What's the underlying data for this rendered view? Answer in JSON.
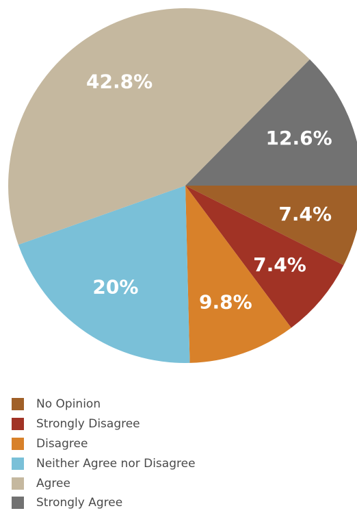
{
  "chart_data": {
    "type": "pie",
    "title": "",
    "slices": [
      {
        "name": "No Opinion",
        "value": 7.4,
        "label": "7.4%",
        "color": "#a06028"
      },
      {
        "name": "Strongly Disagree",
        "value": 7.4,
        "label": "7.4%",
        "color": "#a13325"
      },
      {
        "name": "Disagree",
        "value": 9.8,
        "label": "9.8%",
        "color": "#d8812a"
      },
      {
        "name": "Neither Agree nor Disagree",
        "value": 20,
        "label": "20%",
        "color": "#7ac0d8"
      },
      {
        "name": "Agree",
        "value": 42.8,
        "label": "42.8%",
        "color": "#c5b89f"
      },
      {
        "name": "Strongly Agree",
        "value": 12.6,
        "label": "12.6%",
        "color": "#727272"
      }
    ],
    "start": "east",
    "direction": "clockwise",
    "legend_position": "bottom-left"
  },
  "legend": {
    "items": [
      {
        "label": "No Opinion",
        "color": "#a06028"
      },
      {
        "label": "Strongly Disagree",
        "color": "#a13325"
      },
      {
        "label": "Disagree",
        "color": "#d8812a"
      },
      {
        "label": "Neither Agree nor Disagree",
        "color": "#7ac0d8"
      },
      {
        "label": "Agree",
        "color": "#c5b89f"
      },
      {
        "label": "Strongly Agree",
        "color": "#727272"
      }
    ]
  }
}
